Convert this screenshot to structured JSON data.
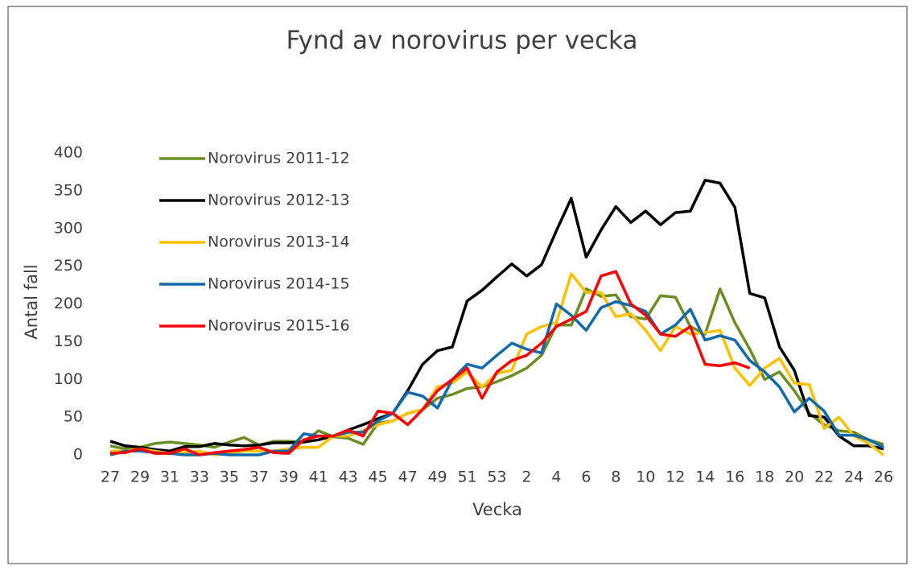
{
  "chart_data": {
    "type": "line",
    "title": "Fynd av norovirus per vecka",
    "x_label": "Vecka",
    "y_label": "Antal fall",
    "categories": [
      "27",
      null,
      "29",
      null,
      "31",
      null,
      "33",
      null,
      "35",
      null,
      "37",
      null,
      "39",
      null,
      "41",
      null,
      "43",
      null,
      "45",
      null,
      "47",
      null,
      "49",
      null,
      "51",
      null,
      "53",
      null,
      "2",
      null,
      "4",
      null,
      "6",
      null,
      "8",
      null,
      "10",
      null,
      "12",
      null,
      "14",
      null,
      "16",
      null,
      "18",
      null,
      "20",
      null,
      "22",
      null,
      "24",
      null,
      "26"
    ],
    "ylim": [
      0,
      400
    ],
    "yticks": [
      0,
      50,
      100,
      150,
      200,
      250,
      300,
      350,
      400
    ],
    "grid": false,
    "legend": "upper left",
    "series": [
      {
        "name": "Norovirus 2011-12",
        "color": "#6b8e23",
        "values": [
          12,
          8,
          10,
          15,
          17,
          15,
          13,
          10,
          17,
          23,
          13,
          18,
          18,
          17,
          32,
          24,
          22,
          14,
          42,
          45,
          55,
          60,
          75,
          80,
          88,
          90,
          97,
          105,
          115,
          132,
          172,
          172,
          220,
          210,
          212,
          183,
          180,
          211,
          209,
          170,
          160,
          220,
          175,
          140,
          100,
          110,
          85,
          55,
          40,
          32,
          30,
          20,
          14
        ]
      },
      {
        "name": "Norovirus 2012-13",
        "color": "#000000",
        "values": [
          18,
          12,
          10,
          7,
          5,
          11,
          11,
          15,
          13,
          12,
          13,
          16,
          16,
          17,
          20,
          25,
          33,
          40,
          48,
          55,
          85,
          120,
          138,
          143,
          204,
          218,
          236,
          253,
          237,
          252,
          297,
          340,
          262,
          298,
          329,
          308,
          323,
          305,
          321,
          323,
          364,
          360,
          328,
          214,
          208,
          143,
          112,
          52,
          50,
          25,
          12,
          12,
          8
        ]
      },
      {
        "name": "Norovirus 2013-14",
        "color": "#ffc000",
        "values": [
          5,
          5,
          8,
          5,
          2,
          3,
          5,
          0,
          2,
          5,
          5,
          5,
          8,
          10,
          10,
          25,
          25,
          32,
          40,
          45,
          55,
          60,
          90,
          95,
          110,
          90,
          108,
          112,
          160,
          170,
          175,
          240,
          215,
          215,
          183,
          187,
          165,
          138,
          170,
          160,
          162,
          165,
          115,
          92,
          115,
          128,
          95,
          93,
          35,
          50,
          25,
          15,
          0
        ]
      },
      {
        "name": "Norovirus 2014-15",
        "color": "#0f6aad",
        "values": [
          0,
          5,
          5,
          3,
          2,
          0,
          0,
          2,
          0,
          0,
          0,
          5,
          5,
          28,
          25,
          25,
          30,
          30,
          45,
          55,
          83,
          78,
          62,
          100,
          120,
          115,
          132,
          148,
          140,
          135,
          200,
          185,
          165,
          195,
          203,
          198,
          190,
          160,
          172,
          193,
          152,
          158,
          152,
          125,
          110,
          90,
          57,
          75,
          58,
          26,
          26,
          20,
          10
        ]
      },
      {
        "name": "Norovirus 2015-16",
        "color": "#ff0000",
        "values": [
          2,
          3,
          8,
          2,
          2,
          8,
          0,
          3,
          5,
          7,
          10,
          3,
          2,
          20,
          25,
          25,
          33,
          25,
          58,
          55,
          40,
          60,
          85,
          100,
          115,
          75,
          110,
          125,
          132,
          148,
          170,
          180,
          190,
          237,
          243,
          200,
          185,
          160,
          157,
          170,
          120,
          118,
          122,
          115,
          null,
          null,
          null,
          null,
          null,
          null,
          null,
          null,
          null
        ]
      }
    ]
  }
}
